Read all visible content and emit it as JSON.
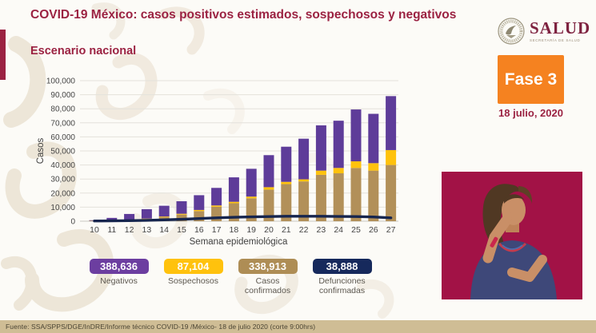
{
  "header": {
    "title": "COVID-19 México: casos positivos estimados, sospechosos y negativos",
    "subtitle": "Escenario nacional",
    "logo": {
      "name": "SALUD",
      "sublabel": "SECRETARÍA DE SALUD"
    },
    "phase_label": "Fase 3",
    "date": "18 julio, 2020"
  },
  "colors": {
    "maroon": "#9B2242",
    "orange": "#F58220",
    "purple": "#5E3C99",
    "yellow": "#FFC20D",
    "tan": "#B29059",
    "navy_line": "#16254E",
    "footer_bar": "#CFBD95",
    "interpreter_bg": "#A21246"
  },
  "chart_data": {
    "type": "bar",
    "variant": "stacked-bars-with-line",
    "title": "",
    "xlabel": "Semana epidemiológica",
    "ylabel": "Casos",
    "ylim": [
      0,
      100000
    ],
    "ytick_step": 10000,
    "grid": true,
    "legend_position": "none",
    "categories": [
      10,
      11,
      12,
      13,
      14,
      15,
      16,
      17,
      18,
      19,
      20,
      21,
      22,
      23,
      24,
      25,
      26,
      27
    ],
    "series": [
      {
        "name": "Casos confirmados",
        "color": "#B29059",
        "values": [
          200,
          400,
          800,
          1500,
          2800,
          4700,
          7200,
          10300,
          12800,
          16300,
          22500,
          26400,
          28300,
          33000,
          34100,
          37900,
          36000,
          40000
        ]
      },
      {
        "name": "Sospechosos",
        "color": "#FFC20D",
        "values": [
          100,
          150,
          250,
          350,
          500,
          600,
          800,
          900,
          1000,
          1200,
          1700,
          1600,
          1500,
          3000,
          3800,
          4700,
          5300,
          10600
        ]
      },
      {
        "name": "Negativos",
        "color": "#5E3C99",
        "values": [
          400,
          1800,
          4100,
          6700,
          7700,
          8900,
          10500,
          12500,
          17400,
          19800,
          22800,
          25000,
          28900,
          32200,
          33600,
          36900,
          35100,
          38400
        ]
      }
    ],
    "line_series": {
      "name": "Defunciones confirmadas",
      "color": "#16254E",
      "values": [
        150,
        250,
        400,
        600,
        950,
        1350,
        1900,
        2400,
        2800,
        3100,
        3300,
        3500,
        3500,
        3500,
        3400,
        3300,
        3000,
        2400
      ]
    }
  },
  "stats": [
    {
      "value": "388,636",
      "label": "Negativos",
      "color": "#6C3EA0"
    },
    {
      "value": "87,104",
      "label": "Sospechosos",
      "color": "#FFC20D"
    },
    {
      "value": "338,913",
      "label": "Casos confirmados",
      "color": "#AE8D55"
    },
    {
      "value": "38,888",
      "label": "Defunciones confirmadas",
      "color": "#16295C"
    }
  ],
  "footer": {
    "source": "Fuente: SSA/SPPS/DGE/InDRE/Informe técnico COVID-19 /México- 18 de julio 2020 (corte 9:00hrs)"
  }
}
